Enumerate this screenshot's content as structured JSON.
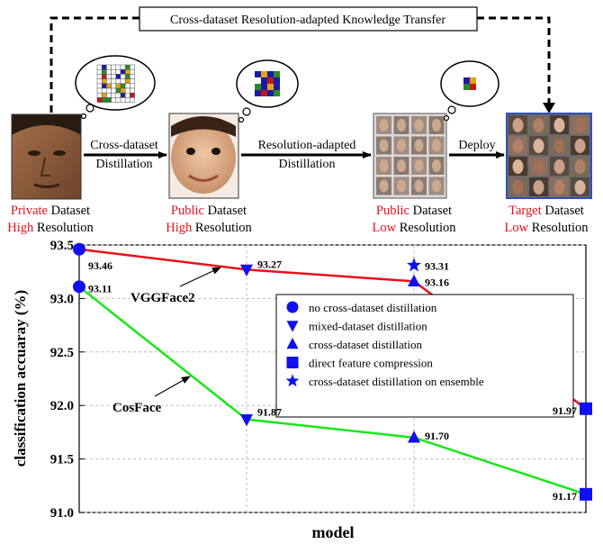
{
  "diagram": {
    "banner": "Cross-dataset Resolution-adapted Knowledge Transfer",
    "steps": [
      {
        "word1": "Private",
        "word2": " Dataset",
        "word3": "High",
        "word4": " Resolution"
      },
      {
        "word1": "Public",
        "word2": " Dataset",
        "word3": "High",
        "word4": " Resolution"
      },
      {
        "word1": "Public",
        "word2": " Dataset",
        "word3": "Low",
        "word4": " Resolution"
      },
      {
        "word1": "Target",
        "word2": " Dataset",
        "word3": "Low",
        "word4": " Resolution"
      }
    ],
    "arrows": [
      {
        "line1": "Cross-dataset",
        "line2": "Distillation"
      },
      {
        "line1": "Resolution-adapted",
        "line2": "Distillation"
      },
      {
        "line1": "Deploy",
        "line2": ""
      }
    ],
    "colors": {
      "highlight": "#e8101a"
    }
  },
  "chart_data": {
    "type": "line",
    "xlabel": "model",
    "ylabel": "classification accuaray (%)",
    "ylim": [
      91.0,
      93.5
    ],
    "yticks": [
      "91.0",
      "91.5",
      "92.0",
      "92.5",
      "93.0",
      "93.5"
    ],
    "x": [
      0,
      1,
      2,
      3
    ],
    "grid": true,
    "legend_position": "center-right",
    "legend": [
      {
        "marker": "circle",
        "label": "no cross-dataset distillation"
      },
      {
        "marker": "triangle-down",
        "label": "mixed-dataset distillation"
      },
      {
        "marker": "triangle-up",
        "label": "cross-dataset distillation"
      },
      {
        "marker": "square",
        "label": "direct feature compression"
      },
      {
        "marker": "star",
        "label": "cross-dataset distillation on ensemble"
      }
    ],
    "series": [
      {
        "name": "VGGFace2",
        "color": "#e8101a",
        "points": [
          {
            "x": 0,
            "y": 93.46,
            "marker": "circle",
            "label": "93.46"
          },
          {
            "x": 1,
            "y": 93.27,
            "marker": "triangle-down",
            "label": "93.27"
          },
          {
            "x": 2,
            "y": 93.16,
            "marker": "triangle-up",
            "label": "93.16"
          },
          {
            "x": 3,
            "y": 91.97,
            "marker": "square",
            "label": "91.97"
          }
        ]
      },
      {
        "name": "CosFace",
        "color": "#19e619",
        "points": [
          {
            "x": 0,
            "y": 93.11,
            "marker": "circle",
            "label": "93.11"
          },
          {
            "x": 1,
            "y": 91.87,
            "marker": "triangle-down",
            "label": "91.87"
          },
          {
            "x": 2,
            "y": 91.7,
            "marker": "triangle-up",
            "label": "91.70"
          },
          {
            "x": 3,
            "y": 91.17,
            "marker": "square",
            "label": "91.17"
          }
        ]
      }
    ],
    "extra_points": [
      {
        "x": 2,
        "y": 93.31,
        "marker": "star",
        "label": "93.31"
      }
    ],
    "marker_color": "#1010f0"
  }
}
